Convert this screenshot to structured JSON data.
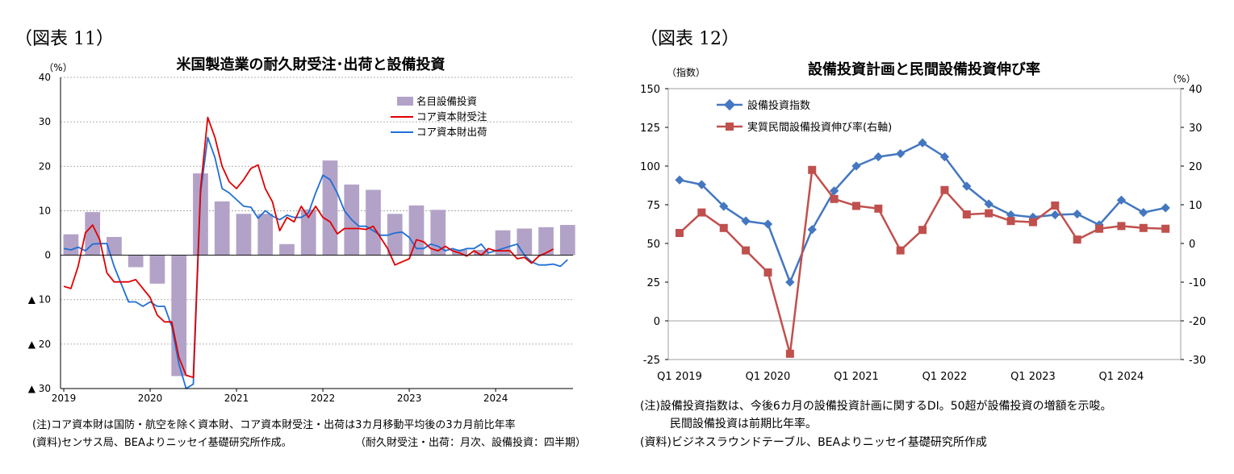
{
  "left": {
    "fig_label": "（図表 11）",
    "notes": {
      "note1": "(注)コア資本財は国防・航空を除く資本財、コア資本財受注・出荷は3カ月移動平均後の3カ月前比年率",
      "source": "(資料)センサス局、BEAよりニッセイ基礎研究所作成。",
      "freq": "（耐久財受注・出荷：月次、設備投資：四半期）"
    },
    "chart_data": {
      "type": "bar+line",
      "title": "米国製造業の耐久財受注･出荷と設備投資",
      "ylabel": "（%）",
      "ylim": [
        -30,
        40
      ],
      "y_ticks": [
        {
          "v": 40,
          "label": "40"
        },
        {
          "v": 30,
          "label": "30"
        },
        {
          "v": 20,
          "label": "20"
        },
        {
          "v": 10,
          "label": "10"
        },
        {
          "v": 0,
          "label": "0"
        },
        {
          "v": -10,
          "label": "▲ 10"
        },
        {
          "v": -20,
          "label": "▲ 20"
        },
        {
          "v": -30,
          "label": "▲ 30"
        }
      ],
      "x_labels": [
        "2019",
        "2020",
        "2021",
        "2022",
        "2023",
        "2024"
      ],
      "x_start": "2019-01",
      "legend": [
        "名目設備投資",
        "コア資本財受注",
        "コア資本財出荷"
      ],
      "colors": {
        "bars": "#b3a2c7",
        "orders": "#e00000",
        "shipments": "#1f6fd6"
      },
      "bars_quarterly": [
        4.7,
        9.7,
        4.1,
        -2.7,
        -6.4,
        -27.2,
        18.4,
        12.1,
        9.3,
        9.3,
        2.5,
        10.3,
        21.3,
        15.9,
        14.7,
        9.3,
        11.2,
        10.2,
        1.3,
        1.2,
        5.6,
        6.0,
        6.3,
        6.8
      ],
      "orders_monthly": [
        -7,
        -7.5,
        -2.5,
        5,
        6.8,
        3.5,
        -4,
        -6,
        -6,
        -6,
        -5.5,
        -7.5,
        -9.5,
        -13.5,
        -15,
        -15,
        -23,
        -27,
        -27.5,
        15,
        31,
        26.5,
        20,
        16.5,
        15,
        17,
        19.5,
        20.3,
        15,
        12,
        5.5,
        8.5,
        7.5,
        11,
        8.5,
        11,
        8.5,
        7.5,
        4.8,
        6,
        6,
        6,
        5.8,
        6.5,
        4,
        1.5,
        -2.2,
        -1.5,
        -0.8,
        3.5,
        3,
        1.5,
        1,
        2,
        1,
        0.5,
        -0.2,
        1,
        0,
        1.5,
        1,
        1,
        1,
        -0.8,
        -0.5,
        -1.8,
        -0.2,
        0.5,
        1.4
      ],
      "shipments_monthly": [
        1.5,
        1.2,
        1.8,
        1,
        2.5,
        2.6,
        2.6,
        -2.5,
        -6.5,
        -10.5,
        -10.5,
        -11.5,
        -10.5,
        -11.5,
        -11.5,
        -16,
        -24.5,
        -30,
        -29,
        14,
        26.5,
        22,
        15,
        14,
        12.5,
        11,
        10.8,
        8.3,
        10,
        8.8,
        8,
        9,
        8.5,
        8.5,
        9.5,
        14,
        18,
        17,
        14,
        10,
        8,
        6.5,
        6.5,
        5.5,
        4.5,
        4.5,
        5,
        5.2,
        4,
        1.5,
        1.5,
        2.5,
        2,
        1,
        1.5,
        1,
        1.5,
        1.5,
        2.5,
        0.5,
        1,
        1.5,
        2,
        2.5,
        0,
        -1.5,
        -2.2,
        -2.2,
        -2,
        -2.5,
        -1
      ],
      "title_note": "grid dotted"
    }
  },
  "right": {
    "fig_label": "（図表 12）",
    "notes": {
      "note1": "(注)設備投資指数は、今後6カ月の設備投資計画に関するDI。50超が設備投資の増額を示唆。",
      "note2": "民間設備投資は前期比年率。",
      "source": "(資料)ビジネスラウンドテーブル、BEAよりニッセイ基礎研究所作成"
    },
    "chart_data": {
      "type": "line",
      "title": "設備投資計画と民間設備投資伸び率",
      "ylabel_left": "（指数）",
      "ylabel_right": "（%）",
      "ylim_left": [
        -25,
        150
      ],
      "ylim_right": [
        -30,
        40
      ],
      "y_ticks_left": [
        "150",
        "125",
        "100",
        "75",
        "50",
        "25",
        "0",
        "-25"
      ],
      "y_ticks_right": [
        "40",
        "30",
        "20",
        "10",
        "0",
        "-10",
        "-20",
        "-30"
      ],
      "x_labels": [
        "Q1 2019",
        "Q1 2020",
        "Q1 2021",
        "Q1 2022",
        "Q1 2023",
        "Q1 2024"
      ],
      "legend": [
        "設備投資指数",
        "実質民間設備投資伸び率(右軸)"
      ],
      "colors": {
        "index": "#4477c0",
        "growth": "#c0504d"
      },
      "series": [
        {
          "name": "設備投資指数",
          "axis": "left",
          "values": [
            91,
            88,
            74,
            64.5,
            62.5,
            25,
            59,
            84,
            100,
            106,
            108,
            115,
            106,
            87,
            75.5,
            68.5,
            67,
            68.5,
            69,
            62,
            78,
            70,
            73
          ]
        },
        {
          "name": "実質民間設備投資伸び率(右軸)",
          "axis": "right",
          "values": [
            2.7,
            8,
            4,
            -1.8,
            -7.5,
            -28.5,
            19,
            11.5,
            9.7,
            9,
            -1.8,
            3.5,
            13.8,
            7.5,
            7.8,
            5.8,
            5.5,
            9.8,
            1,
            3.8,
            4.5,
            4,
            3.8
          ]
        }
      ]
    }
  }
}
